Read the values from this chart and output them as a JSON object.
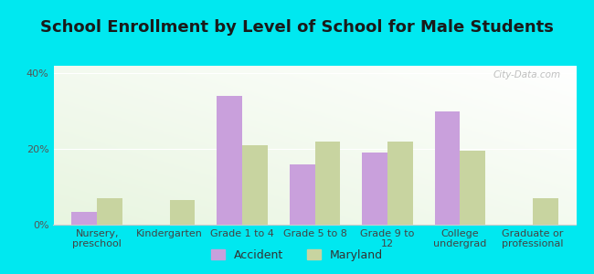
{
  "title": "School Enrollment by Level of School for Male Students",
  "categories": [
    "Nursery,\npreschool",
    "Kindergarten",
    "Grade 1 to 4",
    "Grade 5 to 8",
    "Grade 9 to\n12",
    "College\nundergrad",
    "Graduate or\nprofessional"
  ],
  "accident_values": [
    3.5,
    0,
    34,
    16,
    19,
    30,
    0
  ],
  "maryland_values": [
    7,
    6.5,
    21,
    22,
    22,
    19.5,
    7
  ],
  "accident_color": "#c9a0dc",
  "maryland_color": "#c8d4a0",
  "background_color": "#00e8f0",
  "ylabel_ticks": [
    "0%",
    "20%",
    "40%"
  ],
  "yticks": [
    0,
    20,
    40
  ],
  "ylim": [
    0,
    42
  ],
  "bar_width": 0.35,
  "legend_labels": [
    "Accident",
    "Maryland"
  ],
  "title_fontsize": 13,
  "tick_fontsize": 8,
  "watermark": "City-Data.com"
}
